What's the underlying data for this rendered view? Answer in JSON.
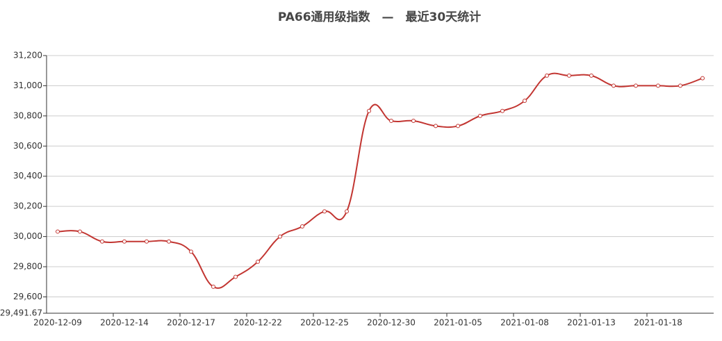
{
  "chart_data": {
    "type": "line",
    "title": "PA66通用级指数　—　最近30天统计",
    "categories": [
      "2020-12-09",
      null,
      null,
      "2020-12-14",
      null,
      null,
      "2020-12-17",
      null,
      null,
      "2020-12-22",
      null,
      null,
      "2020-12-25",
      null,
      null,
      "2020-12-30",
      null,
      null,
      "2021-01-05",
      null,
      null,
      "2021-01-08",
      null,
      null,
      "2021-01-13",
      null,
      null,
      "2021-01-18",
      null,
      null
    ],
    "values": [
      30033,
      30033,
      29967,
      29967,
      29967,
      29967,
      29900,
      29667,
      29733,
      29833,
      30000,
      30067,
      30167,
      30167,
      30833,
      30767,
      30767,
      30733,
      30733,
      30800,
      30833,
      30900,
      31067,
      31067,
      31067,
      31000,
      31000,
      31000,
      31000,
      31050
    ],
    "color": "#c23531",
    "ylim": [
      29491.67,
      31200
    ],
    "yticks": [
      {
        "value": 29491.67,
        "label": "29,491.67"
      },
      {
        "value": 29600,
        "label": "29,600"
      },
      {
        "value": 29800,
        "label": "29,800"
      },
      {
        "value": 30000,
        "label": "30,000"
      },
      {
        "value": 30200,
        "label": "30,200"
      },
      {
        "value": 30400,
        "label": "30,400"
      },
      {
        "value": 30600,
        "label": "30,600"
      },
      {
        "value": 30800,
        "label": "30,800"
      },
      {
        "value": 31000,
        "label": "31,000"
      },
      {
        "value": 31200,
        "label": "31,200"
      }
    ],
    "grid": true,
    "smooth": true
  }
}
